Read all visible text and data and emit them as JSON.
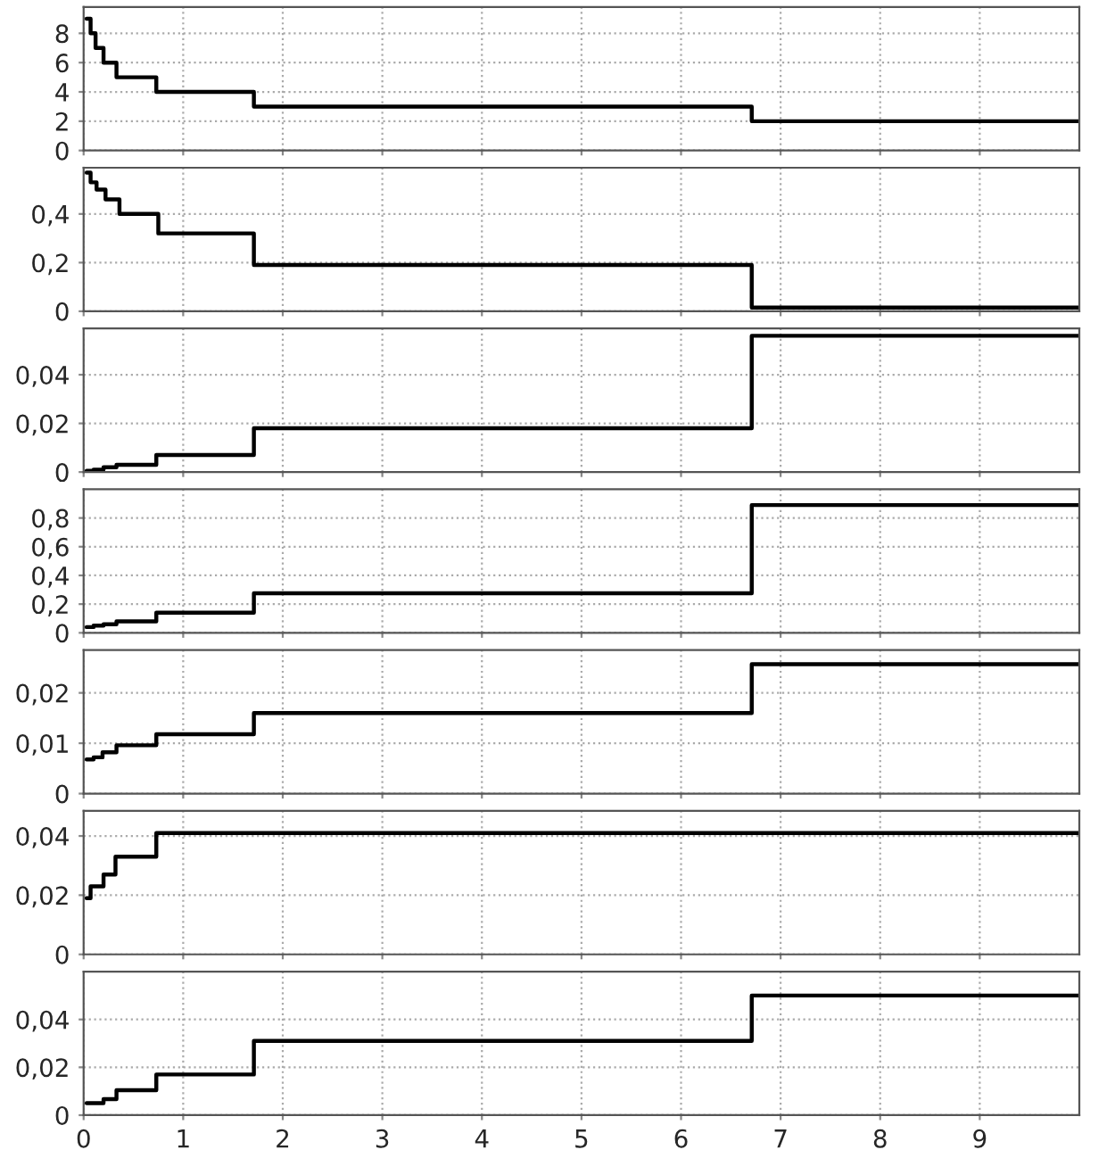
{
  "chart_data": [
    {
      "type": "step",
      "x": [
        0.03,
        0.07,
        0.12,
        0.2,
        0.33,
        0.73,
        1.71,
        6.71,
        10
      ],
      "series": [
        {
          "color": "#000000",
          "values": [
            9,
            8,
            7,
            6,
            5,
            4,
            3,
            2,
            2
          ]
        }
      ],
      "xlim": [
        0,
        10
      ],
      "xticks": [
        0,
        1,
        2,
        3,
        4,
        5,
        6,
        7,
        8,
        9
      ],
      "ylim": [
        0,
        9.8
      ],
      "yticks": [
        0,
        2,
        4,
        6,
        8
      ],
      "grid": true,
      "tick_labels": "y"
    },
    {
      "type": "step",
      "x": [
        0.03,
        0.07,
        0.13,
        0.22,
        0.36,
        0.75,
        1.71,
        6.71,
        10
      ],
      "series": [
        {
          "color": "#000000",
          "values": [
            0.57,
            0.53,
            0.5,
            0.46,
            0.4,
            0.32,
            0.19,
            0.015,
            0.015
          ]
        }
      ],
      "xlim": [
        0,
        10
      ],
      "xticks": [
        0,
        1,
        2,
        3,
        4,
        5,
        6,
        7,
        8,
        9
      ],
      "ylim": [
        0,
        0.59
      ],
      "yticks": [
        0,
        {
          "value": 0.2,
          "label": "0,2"
        },
        {
          "value": 0.4,
          "label": "0,4"
        }
      ],
      "grid": true,
      "tick_labels": "y"
    },
    {
      "type": "step",
      "x": [
        0.03,
        0.1,
        0.2,
        0.33,
        0.73,
        1.71,
        6.71,
        10
      ],
      "series": [
        {
          "color": "#000000",
          "values": [
            0.0005,
            0.001,
            0.002,
            0.003,
            0.007,
            0.018,
            0.056,
            0.056
          ]
        }
      ],
      "xlim": [
        0,
        10
      ],
      "xticks": [
        0,
        1,
        2,
        3,
        4,
        5,
        6,
        7,
        8,
        9
      ],
      "ylim": [
        0,
        0.059
      ],
      "yticks": [
        0,
        {
          "value": 0.02,
          "label": "0,02"
        },
        {
          "value": 0.04,
          "label": "0,04"
        }
      ],
      "grid": true,
      "tick_labels": "y"
    },
    {
      "type": "step",
      "x": [
        0.03,
        0.1,
        0.2,
        0.33,
        0.73,
        1.71,
        6.71,
        10
      ],
      "series": [
        {
          "color": "#000000",
          "values": [
            0.04,
            0.05,
            0.06,
            0.08,
            0.14,
            0.275,
            0.89,
            0.89
          ]
        }
      ],
      "xlim": [
        0,
        10
      ],
      "xticks": [
        0,
        1,
        2,
        3,
        4,
        5,
        6,
        7,
        8,
        9
      ],
      "ylim": [
        0,
        1.0
      ],
      "yticks": [
        0,
        {
          "value": 0.2,
          "label": "0,2"
        },
        {
          "value": 0.4,
          "label": "0,4"
        },
        {
          "value": 0.6,
          "label": "0,6"
        },
        {
          "value": 0.8,
          "label": "0,8"
        }
      ],
      "grid": true,
      "tick_labels": "y"
    },
    {
      "type": "step",
      "x": [
        0.03,
        0.1,
        0.19,
        0.33,
        0.73,
        1.71,
        6.71,
        10
      ],
      "series": [
        {
          "color": "#000000",
          "values": [
            0.0068,
            0.0072,
            0.0082,
            0.0096,
            0.0118,
            0.016,
            0.0257,
            0.0257
          ]
        }
      ],
      "xlim": [
        0,
        10
      ],
      "xticks": [
        0,
        1,
        2,
        3,
        4,
        5,
        6,
        7,
        8,
        9
      ],
      "ylim": [
        0,
        0.0285
      ],
      "yticks": [
        0,
        {
          "value": 0.01,
          "label": "0,01"
        },
        {
          "value": 0.02,
          "label": "0,02"
        }
      ],
      "grid": true,
      "tick_labels": "y"
    },
    {
      "type": "step",
      "x": [
        0.03,
        0.07,
        0.2,
        0.32,
        0.73,
        10
      ],
      "series": [
        {
          "color": "#000000",
          "values": [
            0.019,
            0.023,
            0.027,
            0.033,
            0.041,
            0.041
          ]
        }
      ],
      "xlim": [
        0,
        10
      ],
      "xticks": [
        0,
        1,
        2,
        3,
        4,
        5,
        6,
        7,
        8,
        9
      ],
      "ylim": [
        0,
        0.0485
      ],
      "yticks": [
        0,
        {
          "value": 0.02,
          "label": "0,02"
        },
        {
          "value": 0.04,
          "label": "0,04"
        }
      ],
      "grid": true,
      "tick_labels": "y"
    },
    {
      "type": "step",
      "x": [
        0.03,
        0.2,
        0.33,
        0.73,
        1.71,
        6.71,
        10
      ],
      "series": [
        {
          "color": "#000000",
          "values": [
            0.005,
            0.0067,
            0.0104,
            0.017,
            0.031,
            0.05,
            0.05
          ]
        }
      ],
      "xlim": [
        0,
        10
      ],
      "xticks": [
        0,
        1,
        2,
        3,
        4,
        5,
        6,
        7,
        8,
        9
      ],
      "ylim": [
        0,
        0.06
      ],
      "yticks": [
        0,
        {
          "value": 0.02,
          "label": "0,02"
        },
        {
          "value": 0.04,
          "label": "0,04"
        }
      ],
      "grid": true
    }
  ]
}
